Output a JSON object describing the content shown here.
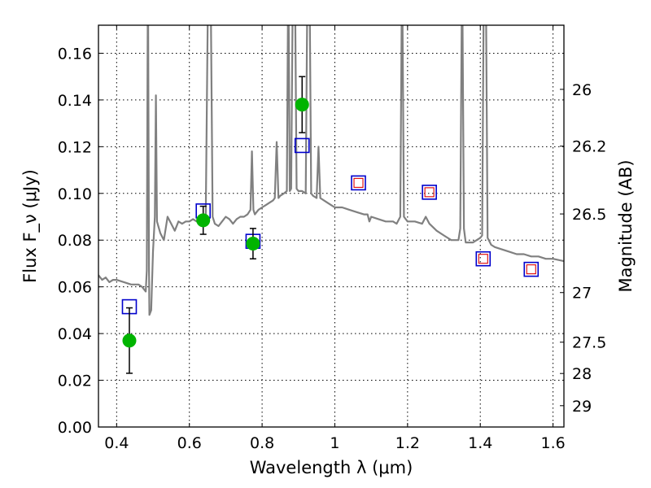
{
  "chart_data": {
    "type": "scatter",
    "xlabel": "Wavelength λ (μm)",
    "ylabel": "Flux F_ν (μJy)",
    "y2label": "Magnitude (AB)",
    "xlim": [
      0.35,
      1.63
    ],
    "ylim": [
      0,
      0.172
    ],
    "x_ticks": [
      0.4,
      0.6,
      0.8,
      1.0,
      1.2,
      1.4,
      1.6
    ],
    "x_tick_labels": [
      "0.4",
      "0.6",
      "0.8",
      "1",
      "1.2",
      "1.4",
      "1.6"
    ],
    "y_ticks": [
      0,
      0.02,
      0.04,
      0.06,
      0.08,
      0.1,
      0.12,
      0.14,
      0.16
    ],
    "y_tick_labels": [
      "0.00",
      "0.02",
      "0.04",
      "0.06",
      "0.08",
      "0.10",
      "0.12",
      "0.14",
      "0.16"
    ],
    "mag_ticks": [
      26,
      26.2,
      26.5,
      27,
      27.5,
      28,
      29
    ],
    "mag_tick_labels": [
      "26",
      "26.2",
      "26.5",
      "27",
      "27.5",
      "28",
      "29"
    ],
    "grid": true,
    "colors": {
      "spectrum": "#808080",
      "observed": "#00b400",
      "model_box": "#0000cc",
      "model_inner": "#dd0000"
    },
    "spectrum": [
      [
        0.35,
        0.065
      ],
      [
        0.36,
        0.063
      ],
      [
        0.37,
        0.064
      ],
      [
        0.38,
        0.062
      ],
      [
        0.39,
        0.063
      ],
      [
        0.4,
        0.063
      ],
      [
        0.42,
        0.062
      ],
      [
        0.44,
        0.061
      ],
      [
        0.46,
        0.061
      ],
      [
        0.47,
        0.06
      ],
      [
        0.48,
        0.058
      ],
      [
        0.483,
        0.067
      ],
      [
        0.486,
        0.2
      ],
      [
        0.489,
        0.068
      ],
      [
        0.49,
        0.048
      ],
      [
        0.495,
        0.05
      ],
      [
        0.5,
        0.075
      ],
      [
        0.505,
        0.09
      ],
      [
        0.508,
        0.142
      ],
      [
        0.511,
        0.088
      ],
      [
        0.52,
        0.083
      ],
      [
        0.53,
        0.08
      ],
      [
        0.54,
        0.09
      ],
      [
        0.55,
        0.087
      ],
      [
        0.56,
        0.084
      ],
      [
        0.57,
        0.088
      ],
      [
        0.58,
        0.087
      ],
      [
        0.59,
        0.088
      ],
      [
        0.6,
        0.088
      ],
      [
        0.61,
        0.089
      ],
      [
        0.62,
        0.088
      ],
      [
        0.63,
        0.089
      ],
      [
        0.64,
        0.09
      ],
      [
        0.645,
        0.089
      ],
      [
        0.652,
        0.2
      ],
      [
        0.658,
        0.2
      ],
      [
        0.664,
        0.09
      ],
      [
        0.67,
        0.087
      ],
      [
        0.68,
        0.086
      ],
      [
        0.69,
        0.088
      ],
      [
        0.7,
        0.09
      ],
      [
        0.71,
        0.089
      ],
      [
        0.72,
        0.087
      ],
      [
        0.73,
        0.089
      ],
      [
        0.74,
        0.09
      ],
      [
        0.75,
        0.09
      ],
      [
        0.76,
        0.091
      ],
      [
        0.768,
        0.093
      ],
      [
        0.772,
        0.118
      ],
      [
        0.776,
        0.093
      ],
      [
        0.78,
        0.091
      ],
      [
        0.79,
        0.093
      ],
      [
        0.8,
        0.094
      ],
      [
        0.81,
        0.095
      ],
      [
        0.82,
        0.096
      ],
      [
        0.83,
        0.097
      ],
      [
        0.835,
        0.098
      ],
      [
        0.84,
        0.122
      ],
      [
        0.845,
        0.098
      ],
      [
        0.85,
        0.099
      ],
      [
        0.86,
        0.1
      ],
      [
        0.868,
        0.101
      ],
      [
        0.872,
        0.2
      ],
      [
        0.876,
        0.101
      ],
      [
        0.88,
        0.102
      ],
      [
        0.885,
        0.2
      ],
      [
        0.89,
        0.2
      ],
      [
        0.895,
        0.102
      ],
      [
        0.9,
        0.101
      ],
      [
        0.91,
        0.101
      ],
      [
        0.92,
        0.1
      ],
      [
        0.925,
        0.2
      ],
      [
        0.93,
        0.2
      ],
      [
        0.935,
        0.1
      ],
      [
        0.94,
        0.099
      ],
      [
        0.95,
        0.098
      ],
      [
        0.955,
        0.12
      ],
      [
        0.96,
        0.098
      ],
      [
        0.97,
        0.097
      ],
      [
        0.98,
        0.096
      ],
      [
        0.99,
        0.095
      ],
      [
        1.0,
        0.094
      ],
      [
        1.02,
        0.094
      ],
      [
        1.04,
        0.093
      ],
      [
        1.06,
        0.092
      ],
      [
        1.08,
        0.091
      ],
      [
        1.09,
        0.091
      ],
      [
        1.095,
        0.088
      ],
      [
        1.1,
        0.09
      ],
      [
        1.12,
        0.089
      ],
      [
        1.14,
        0.088
      ],
      [
        1.16,
        0.088
      ],
      [
        1.17,
        0.087
      ],
      [
        1.18,
        0.09
      ],
      [
        1.185,
        0.2
      ],
      [
        1.19,
        0.09
      ],
      [
        1.2,
        0.088
      ],
      [
        1.22,
        0.088
      ],
      [
        1.24,
        0.087
      ],
      [
        1.25,
        0.09
      ],
      [
        1.26,
        0.087
      ],
      [
        1.28,
        0.084
      ],
      [
        1.3,
        0.082
      ],
      [
        1.32,
        0.08
      ],
      [
        1.34,
        0.08
      ],
      [
        1.345,
        0.085
      ],
      [
        1.35,
        0.2
      ],
      [
        1.355,
        0.085
      ],
      [
        1.36,
        0.079
      ],
      [
        1.38,
        0.079
      ],
      [
        1.39,
        0.08
      ],
      [
        1.4,
        0.081
      ],
      [
        1.405,
        0.082
      ],
      [
        1.41,
        0.2
      ],
      [
        1.415,
        0.2
      ],
      [
        1.42,
        0.081
      ],
      [
        1.43,
        0.078
      ],
      [
        1.44,
        0.077
      ],
      [
        1.46,
        0.076
      ],
      [
        1.48,
        0.075
      ],
      [
        1.5,
        0.074
      ],
      [
        1.52,
        0.074
      ],
      [
        1.54,
        0.073
      ],
      [
        1.56,
        0.073
      ],
      [
        1.58,
        0.072
      ],
      [
        1.6,
        0.072
      ],
      [
        1.63,
        0.071
      ]
    ],
    "observed": [
      {
        "x": 0.435,
        "y": 0.037,
        "yerr": 0.014
      },
      {
        "x": 0.638,
        "y": 0.0885,
        "yerr": 0.006
      },
      {
        "x": 0.775,
        "y": 0.0785,
        "yerr": 0.0065
      },
      {
        "x": 0.91,
        "y": 0.138,
        "yerr": 0.012
      }
    ],
    "model": [
      {
        "x": 0.435,
        "y": 0.0515,
        "inner": false
      },
      {
        "x": 0.638,
        "y": 0.0925,
        "inner": false
      },
      {
        "x": 0.775,
        "y": 0.0795,
        "inner": false
      },
      {
        "x": 0.91,
        "y": 0.1205,
        "inner": false
      },
      {
        "x": 1.065,
        "y": 0.1045,
        "inner": true
      },
      {
        "x": 1.26,
        "y": 0.1005,
        "inner": true
      },
      {
        "x": 1.408,
        "y": 0.072,
        "inner": true
      },
      {
        "x": 1.54,
        "y": 0.0675,
        "inner": true
      }
    ]
  }
}
